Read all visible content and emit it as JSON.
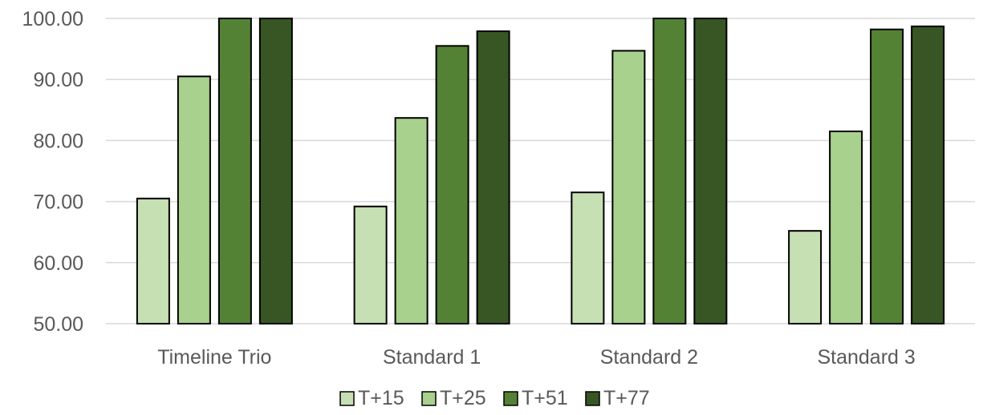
{
  "chart_data": {
    "type": "bar",
    "categories": [
      "Timeline Trio",
      "Standard 1",
      "Standard 2",
      "Standard 3"
    ],
    "series": [
      {
        "name": "T+15",
        "color": "#c6e0b4",
        "values": [
          70.5,
          69.2,
          71.5,
          65.2
        ]
      },
      {
        "name": "T+25",
        "color": "#a9d18e",
        "values": [
          90.5,
          83.7,
          94.7,
          81.5
        ]
      },
      {
        "name": "T+51",
        "color": "#548235",
        "values": [
          100.0,
          95.5,
          100.0,
          98.2
        ]
      },
      {
        "name": "T+77",
        "color": "#375623",
        "values": [
          100.0,
          97.9,
          100.0,
          98.7
        ]
      }
    ],
    "ylim": [
      50,
      100
    ],
    "yticks": [
      "50.00",
      "60.00",
      "70.00",
      "80.00",
      "90.00",
      "100.00"
    ],
    "grid": true,
    "legend": "bottom",
    "title": "",
    "xlabel": "",
    "ylabel": ""
  }
}
